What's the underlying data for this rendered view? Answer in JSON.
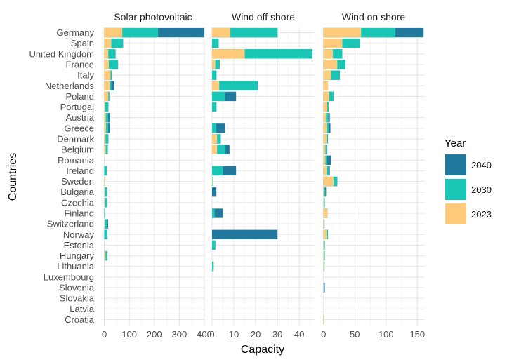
{
  "chart_data": {
    "type": "bar",
    "orientation": "horizontal",
    "stacked": true,
    "xlabel": "Capacity",
    "ylabel": "Countries",
    "grid": true,
    "legend": {
      "title": "Year",
      "placement": "right",
      "items": [
        {
          "name": "2040",
          "color": "#21799E"
        },
        {
          "name": "2030",
          "color": "#1AC7B6"
        },
        {
          "name": "2023",
          "color": "#FFCB7B"
        }
      ]
    },
    "categories": [
      "Germany",
      "Spain",
      "United Kingdom",
      "France",
      "Italy",
      "Netherlands",
      "Poland",
      "Portugal",
      "Austria",
      "Greece",
      "Denmark",
      "Belgium",
      "Romania",
      "Ireland",
      "Sweden",
      "Bulgaria",
      "Czechia",
      "Finland",
      "Switzerland",
      "Norway",
      "Estonia",
      "Hungary",
      "Lithuania",
      "Luxembourg",
      "Slovenia",
      "Slovakia",
      "Latvia",
      "Croatia"
    ],
    "facets": [
      {
        "title": "Solar photovoltaic",
        "xlim": [
          -10,
          400
        ],
        "xticks": [
          0,
          100,
          200,
          300,
          400
        ],
        "series": [
          {
            "name": "2023",
            "values": [
              72,
              28,
              16,
              18,
              25,
              22,
              16,
              3,
              6,
              7,
              5,
              6,
              0,
              0,
              3,
              2,
              2,
              0,
              2,
              0,
              0,
              5,
              0,
              0,
              0,
              0,
              0,
              0
            ]
          },
          {
            "name": "2030",
            "values": [
              215,
              75,
              45,
              55,
              30,
              28,
              20,
              16,
              16,
              16,
              16,
              14,
              0,
              10,
              3,
              10,
              10,
              1,
              12,
              12,
              0,
              12,
              0,
              0,
              0,
              0,
              0,
              0
            ]
          },
          {
            "name": "2040",
            "values": [
              400,
              75,
              45,
              55,
              30,
              40,
              20,
              16,
              22,
              22,
              16,
              14,
              0,
              10,
              3,
              12,
              12,
              1,
              15,
              12,
              0,
              12,
              0,
              0,
              0,
              0,
              0,
              0
            ]
          }
        ]
      },
      {
        "title": "Wind off shore",
        "xlim": [
          0,
          47
        ],
        "xticks": [
          0,
          10,
          20,
          30,
          40
        ],
        "series": [
          {
            "name": "2023",
            "values": [
              8.4,
              0,
              15,
              1.5,
              0,
              3.3,
              0,
              0,
              0,
              0,
              2.3,
              2.3,
              0,
              0,
              0.2,
              0,
              0,
              0,
              0,
              0,
              0,
              0,
              0,
              0,
              0,
              0,
              0,
              0
            ]
          },
          {
            "name": "2030",
            "values": [
              30,
              3,
              46,
              3.5,
              2,
              21,
              6,
              2,
              0,
              2,
              4,
              6,
              0,
              5,
              0.6,
              0,
              0,
              1.2,
              0,
              0,
              1.5,
              0,
              0.7,
              0,
              0,
              0,
              0,
              0
            ]
          },
          {
            "name": "2040",
            "values": [
              30,
              3,
              46,
              3.5,
              2,
              21,
              11,
              2,
              0,
              6,
              4,
              8,
              0,
              11,
              0.6,
              2,
              0,
              5,
              0,
              30,
              1.5,
              0,
              0.7,
              0,
              0,
              0,
              0,
              0
            ]
          }
        ]
      },
      {
        "title": "Wind on shore",
        "xlim": [
          -2,
          162
        ],
        "xticks": [
          0,
          50,
          100,
          150
        ],
        "series": [
          {
            "name": "2023",
            "values": [
              60,
              30,
              15,
              22,
              12,
              7,
              9,
              6,
              4,
              5,
              5,
              3,
              3,
              5,
              16,
              1,
              0.5,
              6,
              0.2,
              5,
              0.5,
              0.5,
              1,
              0,
              0,
              0,
              0,
              1
            ]
          },
          {
            "name": "2030",
            "values": [
              115,
              58,
              30,
              35,
              26,
              7,
              16,
              8,
              8,
              8,
              7,
              5,
              6,
              8,
              22,
              3,
              2,
              6,
              1,
              7,
              2,
              2,
              1.5,
              0,
              0,
              0,
              0,
              1
            ]
          },
          {
            "name": "2040",
            "values": [
              160,
              58,
              30,
              35,
              26,
              7,
              16,
              8,
              10,
              11,
              7,
              6,
              12,
              10,
              22,
              4,
              2,
              6,
              1.5,
              7,
              2,
              2,
              1.5,
              0,
              2,
              0,
              0,
              1
            ]
          }
        ]
      }
    ]
  }
}
